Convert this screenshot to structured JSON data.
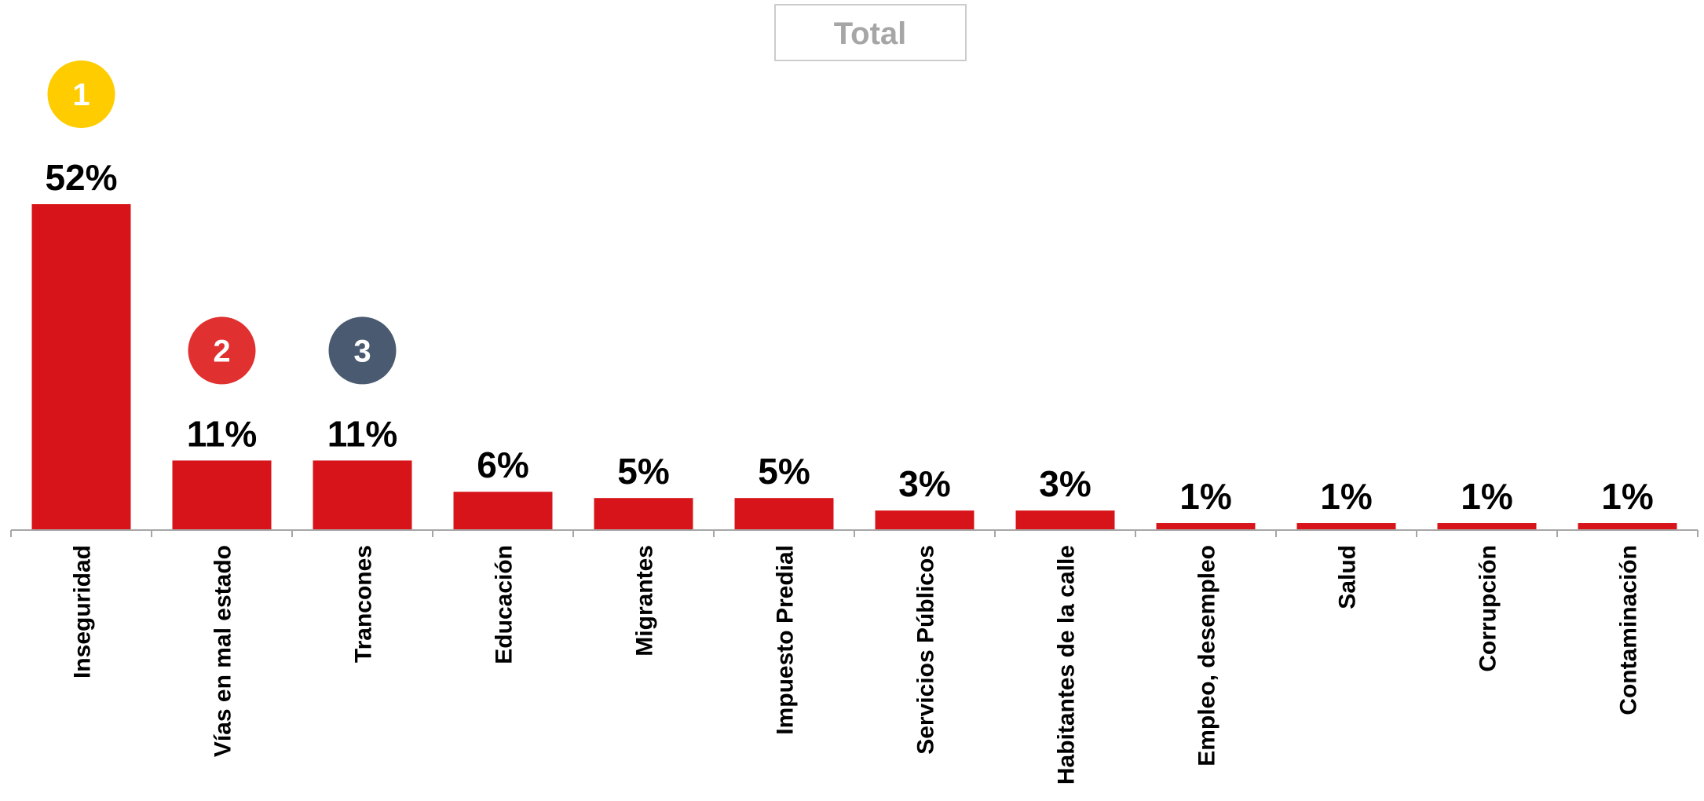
{
  "chart_data": {
    "type": "bar",
    "title": "Total",
    "categories": [
      "Inseguridad",
      "Vías en mal estado",
      "Trancones",
      "Educación",
      "Migrantes",
      "Impuesto Predial",
      "Servicios Públicos",
      "Habitantes de la calle",
      "Empleo, desempleo",
      "Salud",
      "Corrupción",
      "Contaminación"
    ],
    "values": [
      52,
      11,
      11,
      6,
      5,
      5,
      3,
      3,
      1,
      1,
      1,
      1
    ],
    "value_labels": [
      "52%",
      "11%",
      "11%",
      "6%",
      "5%",
      "5%",
      "3%",
      "3%",
      "1%",
      "1%",
      "1%",
      "1%"
    ],
    "unit": "%",
    "ylim": [
      0,
      52
    ],
    "grid": false,
    "legend": "none",
    "bar_color": "#d7141a",
    "ranks": [
      {
        "category_index": 0,
        "label": "1",
        "color": "#ffcc00"
      },
      {
        "category_index": 1,
        "label": "2",
        "color": "#e0302f"
      },
      {
        "category_index": 2,
        "label": "3",
        "color": "#4a5a70"
      }
    ]
  },
  "colors": {
    "axis": "#a6a6a6",
    "title_border": "#cccccc",
    "title_text": "#a6a6a6"
  }
}
